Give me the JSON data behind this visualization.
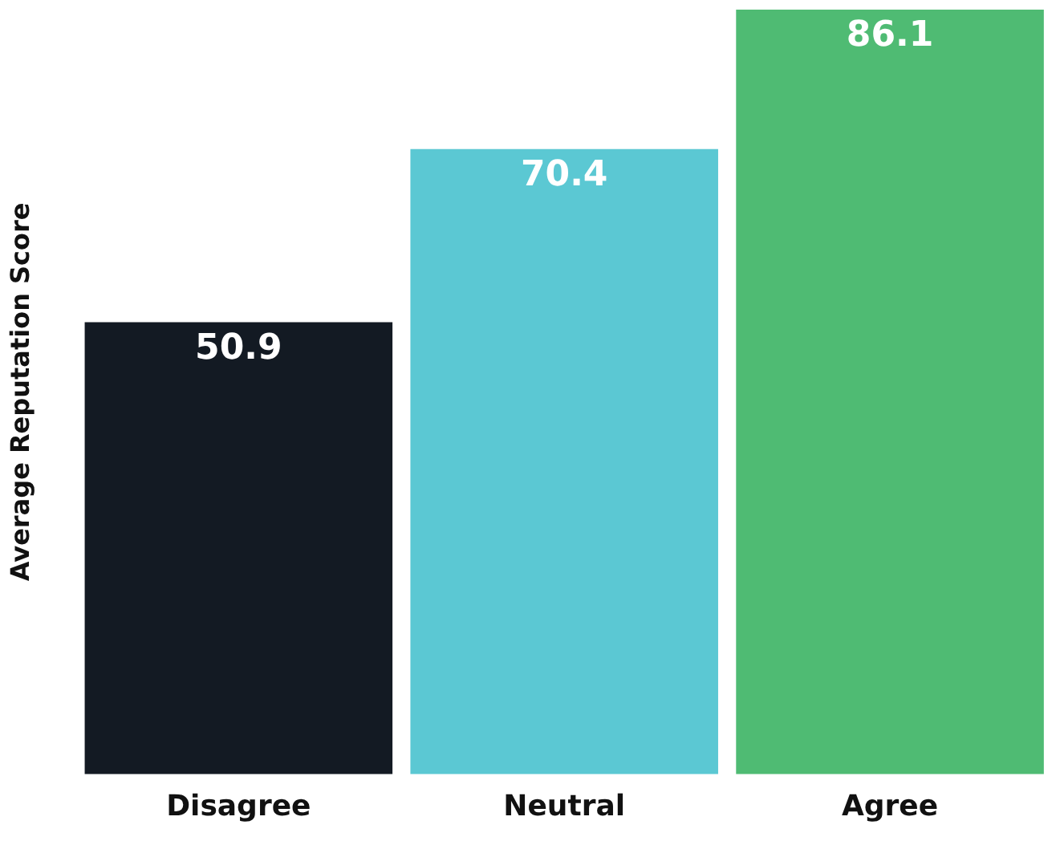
{
  "chart_data": {
    "type": "bar",
    "ylabel": "Average Reputation Score",
    "categories": [
      "Disagree",
      "Neutral",
      "Agree"
    ],
    "values": [
      50.9,
      70.4,
      86.1
    ],
    "colors": [
      "#131a23",
      "#5bc8d3",
      "#4fbb73"
    ],
    "data_labels": true,
    "grid": false,
    "legend": false
  }
}
